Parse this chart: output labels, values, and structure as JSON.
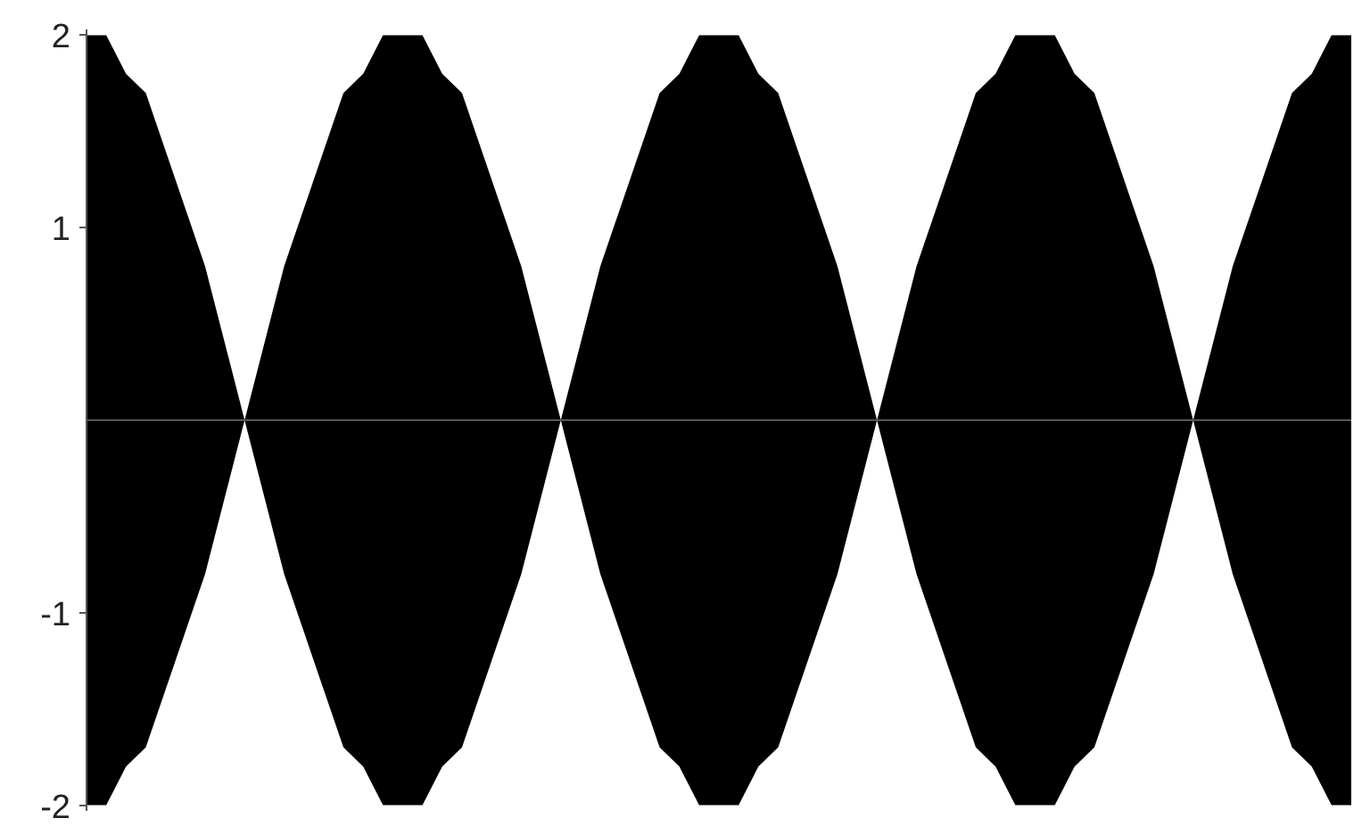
{
  "chart_data": {
    "type": "area",
    "categories": [
      null,
      null,
      null,
      null,
      null,
      null,
      null,
      null,
      null,
      null,
      null,
      null,
      null,
      null,
      null,
      null,
      null,
      null,
      null,
      null,
      null,
      null,
      null,
      null,
      null,
      null,
      null,
      null,
      null,
      null,
      null,
      null,
      null,
      null,
      null,
      null,
      null,
      null,
      null,
      null,
      null,
      null,
      null,
      null,
      null,
      null,
      null,
      null,
      null,
      null,
      null,
      null,
      null,
      null,
      null,
      null,
      null,
      null,
      null,
      null,
      null,
      null,
      null,
      null,
      null
    ],
    "series": [
      {
        "color": "#000000",
        "values": [
          2,
          2,
          1.8,
          1.7,
          1.4,
          1.1,
          0.8,
          0.4,
          0,
          0.4,
          0.8,
          1.1,
          1.4,
          1.7,
          1.8,
          2,
          2,
          2,
          1.8,
          1.7,
          1.4,
          1.1,
          0.8,
          0.4,
          0,
          0.4,
          0.8,
          1.1,
          1.4,
          1.7,
          1.8,
          2,
          2,
          2,
          1.8,
          1.7,
          1.4,
          1.1,
          0.8,
          0.4,
          0,
          0.4,
          0.8,
          1.1,
          1.4,
          1.7,
          1.8,
          2,
          2,
          2,
          1.8,
          1.7,
          1.4,
          1.1,
          0.8,
          0.4,
          0,
          0.4,
          0.8,
          1.1,
          1.4,
          1.7,
          1.8,
          2,
          2
        ]
      },
      {
        "color": "#000000",
        "values": [
          -2,
          -2,
          -1.8,
          -1.7,
          -1.4,
          -1.1,
          -0.8,
          -0.4,
          0,
          -0.4,
          -0.8,
          -1.1,
          -1.4,
          -1.7,
          -1.8,
          -2,
          -2,
          -2,
          -1.8,
          -1.7,
          -1.4,
          -1.1,
          -0.8,
          -0.4,
          0,
          -0.4,
          -0.8,
          -1.1,
          -1.4,
          -1.7,
          -1.8,
          -2,
          -2,
          -2,
          -1.8,
          -1.7,
          -1.4,
          -1.1,
          -0.8,
          -0.4,
          0,
          -0.4,
          -0.8,
          -1.1,
          -1.4,
          -1.7,
          -1.8,
          -2,
          -2,
          -2,
          -1.8,
          -1.7,
          -1.4,
          -1.1,
          -0.8,
          -0.4,
          0,
          -0.4,
          -0.8,
          -1.1,
          -1.4,
          -1.7,
          -1.8,
          -2,
          -2
        ]
      }
    ],
    "ylim": [
      -2.03,
      2.03
    ],
    "yticks": [
      -2,
      -1,
      1,
      2
    ],
    "tick_labels": "y"
  }
}
